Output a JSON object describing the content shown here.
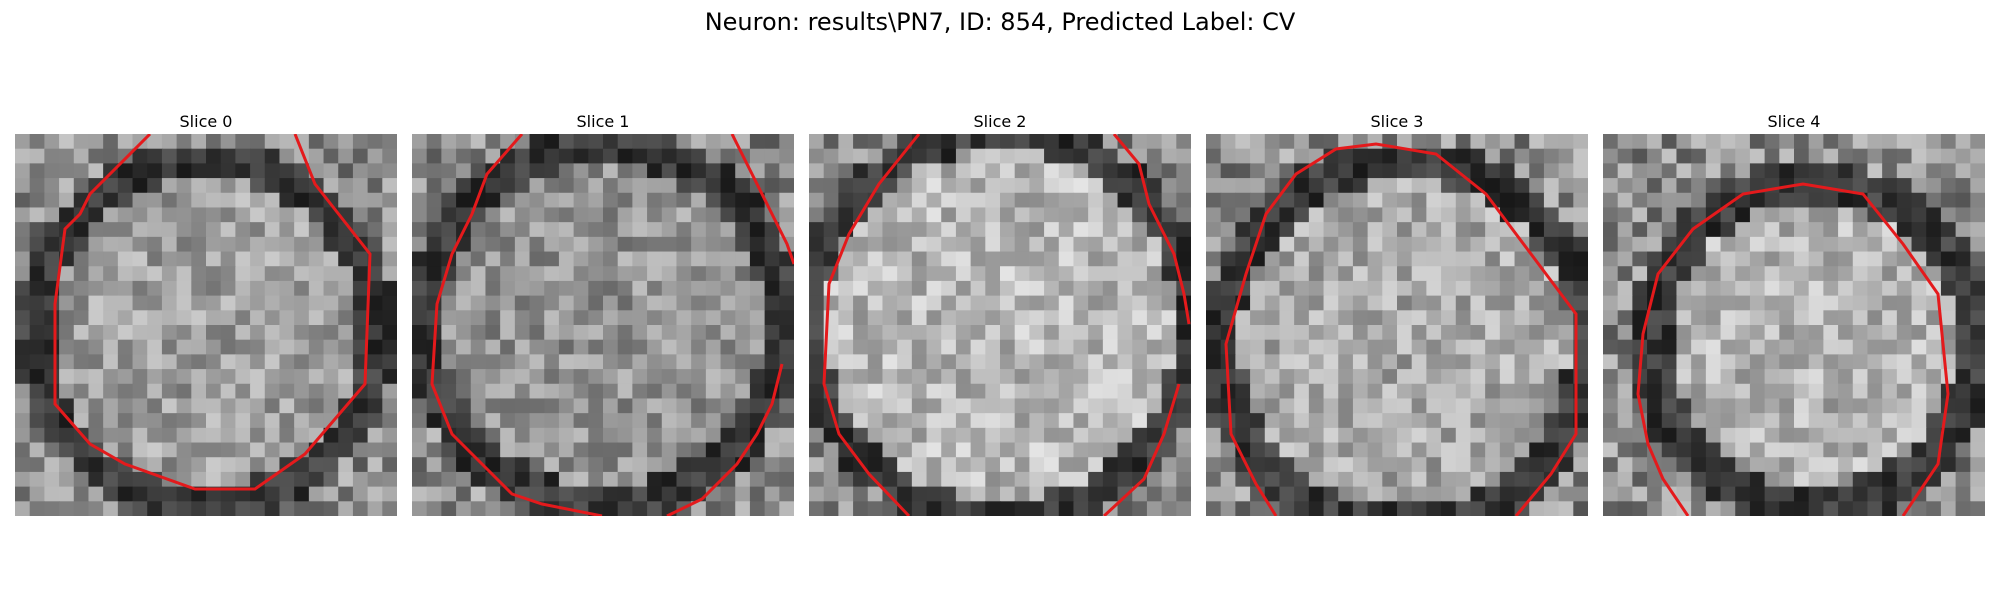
{
  "figure": {
    "title": "Neuron: results\\PN7, ID: 854, Predicted Label: CV",
    "contour_color": "#e41a1c"
  },
  "slices": [
    {
      "title": "Slice 0"
    },
    {
      "title": "Slice 1"
    },
    {
      "title": "Slice 2"
    },
    {
      "title": "Slice 3"
    },
    {
      "title": "Slice 4"
    }
  ]
}
